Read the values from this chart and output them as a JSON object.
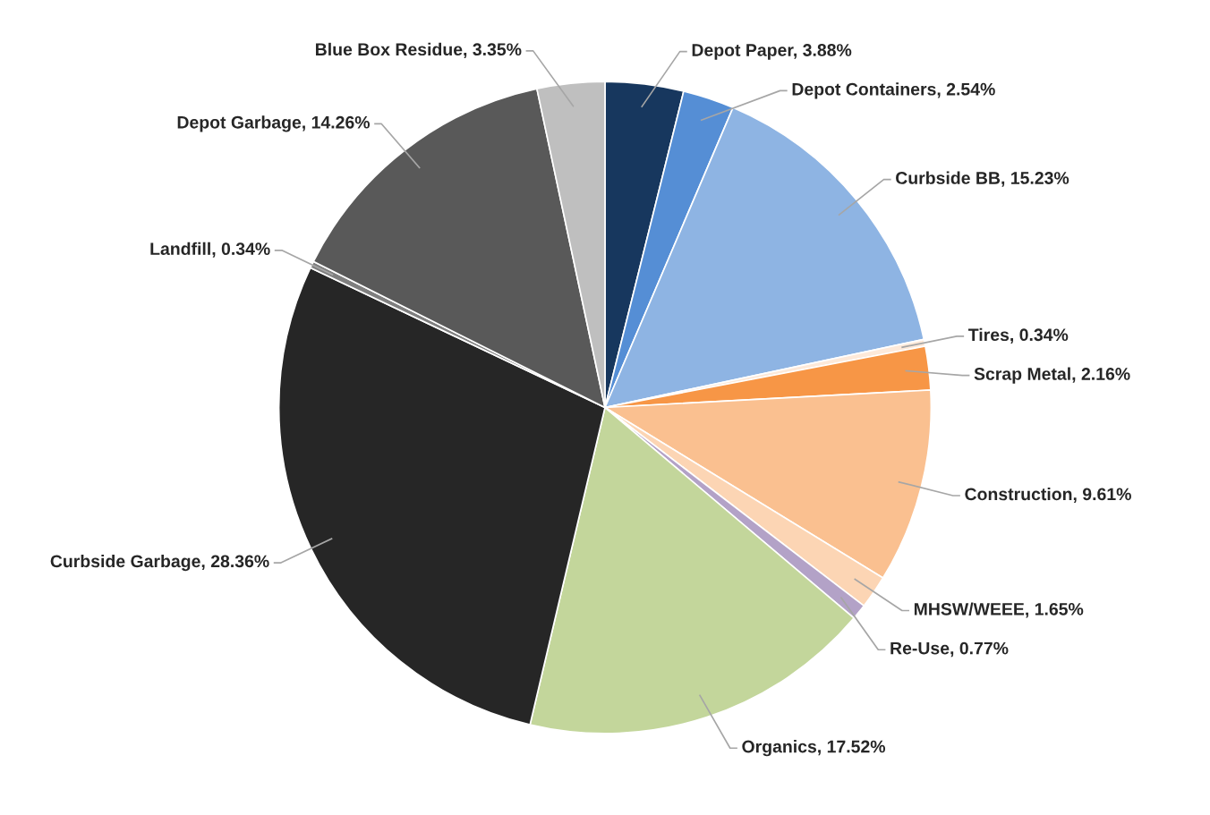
{
  "chart_data": {
    "type": "pie",
    "categories": [
      "Depot Paper",
      "Depot Containers",
      "Curbside BB",
      "Tires",
      "Scrap Metal",
      "Construction",
      "MHSW/WEEE",
      "Re-Use",
      "Organics",
      "Curbside Garbage",
      "Landfill",
      "Depot Garbage",
      "Blue Box Residue"
    ],
    "values": [
      3.88,
      2.54,
      15.23,
      0.34,
      2.16,
      9.61,
      1.65,
      0.77,
      17.52,
      28.36,
      0.34,
      14.26,
      3.35
    ],
    "value_labels": [
      "3.88%",
      "2.54%",
      "15.23%",
      "0.34%",
      "2.16%",
      "9.61%",
      "1.65%",
      "0.77%",
      "17.52%",
      "28.36%",
      "0.34%",
      "14.26%",
      "3.35%"
    ],
    "colors": [
      "#17375e",
      "#558ed5",
      "#8eb4e3",
      "#fde9d9",
      "#f79646",
      "#fac090",
      "#fcd5b4",
      "#b3a2c7",
      "#c3d69b",
      "#262626",
      "#7f7f7f",
      "#595959",
      "#bfbfbf"
    ],
    "legend": false
  }
}
